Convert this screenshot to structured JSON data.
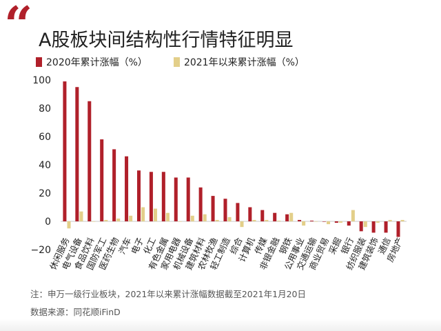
{
  "title": "A股板块间结构性行情特征明显",
  "quote_glyph": "“",
  "colors": {
    "series_2020": "#b0202a",
    "series_2021": "#e3cf8a",
    "accent": "#b0202a"
  },
  "footer": {
    "note": "注：申万一级行业板块，2021年以来累计涨幅数据截至2021年1月20日",
    "source": "数据来源：同花顺iFinD"
  },
  "chart_data": {
    "type": "bar",
    "title": "A股板块间结构性行情特征明显",
    "xlabel": "",
    "ylabel": "",
    "ylim": [
      -20,
      100
    ],
    "yticks": [
      -20,
      0,
      20,
      40,
      60,
      80,
      100
    ],
    "ytick_labels": [
      "−20",
      "0",
      "20",
      "40",
      "60",
      "80",
      "100"
    ],
    "legend_position": "top-left",
    "categories": [
      "休闲服务",
      "电气设备",
      "食品饮料",
      "国防军工",
      "医药生物",
      "汽车",
      "电子",
      "化工",
      "有色金属",
      "家用电器",
      "机械设备",
      "建筑材料",
      "农林牧渔",
      "轻工制造",
      "综合",
      "计算机",
      "传媒",
      "非银金融",
      "钢铁",
      "公用事业",
      "交通运输",
      "商业贸易",
      "采掘",
      "银行",
      "纺织服装",
      "建筑装饰",
      "通信",
      "房地产"
    ],
    "series": [
      {
        "name": "2020年累计涨幅（%）",
        "color": "#b0202a",
        "values": [
          99,
          95,
          85,
          58,
          51,
          46,
          36,
          35,
          35,
          31,
          31,
          24,
          18,
          16,
          13,
          10,
          8,
          6,
          5,
          1,
          0.5,
          0,
          -1,
          -3,
          -7,
          -8,
          -8,
          -11
        ]
      },
      {
        "name": "2021年以来累计涨幅（%）",
        "color": "#e3cf8a",
        "values": [
          -5,
          7,
          0,
          1,
          2,
          4,
          10,
          9,
          6,
          0,
          4,
          5,
          1,
          3,
          -4,
          1,
          1,
          0.5,
          6,
          -3,
          0,
          -2,
          -1,
          8,
          -4,
          -1,
          1,
          1
        ]
      }
    ]
  }
}
